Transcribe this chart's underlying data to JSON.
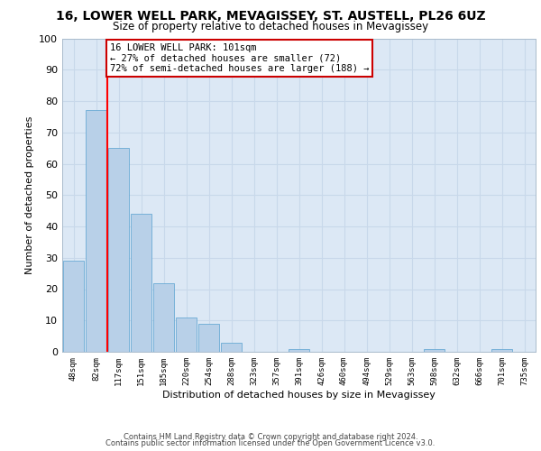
{
  "title": "16, LOWER WELL PARK, MEVAGISSEY, ST. AUSTELL, PL26 6UZ",
  "subtitle": "Size of property relative to detached houses in Mevagissey",
  "xlabel": "Distribution of detached houses by size in Mevagissey",
  "ylabel": "Number of detached properties",
  "categories": [
    "48sqm",
    "82sqm",
    "117sqm",
    "151sqm",
    "185sqm",
    "220sqm",
    "254sqm",
    "288sqm",
    "323sqm",
    "357sqm",
    "391sqm",
    "426sqm",
    "460sqm",
    "494sqm",
    "529sqm",
    "563sqm",
    "598sqm",
    "632sqm",
    "666sqm",
    "701sqm",
    "735sqm"
  ],
  "values": [
    29,
    77,
    65,
    44,
    22,
    11,
    9,
    3,
    0,
    0,
    1,
    0,
    0,
    0,
    0,
    0,
    1,
    0,
    0,
    1,
    0
  ],
  "bar_color": "#b8d0e8",
  "bar_edge_color": "#6aaad4",
  "annotation_text": "16 LOWER WELL PARK: 101sqm\n← 27% of detached houses are smaller (72)\n72% of semi-detached houses are larger (188) →",
  "annotation_box_color": "#ffffff",
  "annotation_box_edge_color": "#cc0000",
  "ylim": [
    0,
    100
  ],
  "yticks": [
    0,
    10,
    20,
    30,
    40,
    50,
    60,
    70,
    80,
    90,
    100
  ],
  "grid_color": "#c8d8ea",
  "bg_color": "#dce8f5",
  "footer_line1": "Contains HM Land Registry data © Crown copyright and database right 2024.",
  "footer_line2": "Contains public sector information licensed under the Open Government Licence v3.0."
}
